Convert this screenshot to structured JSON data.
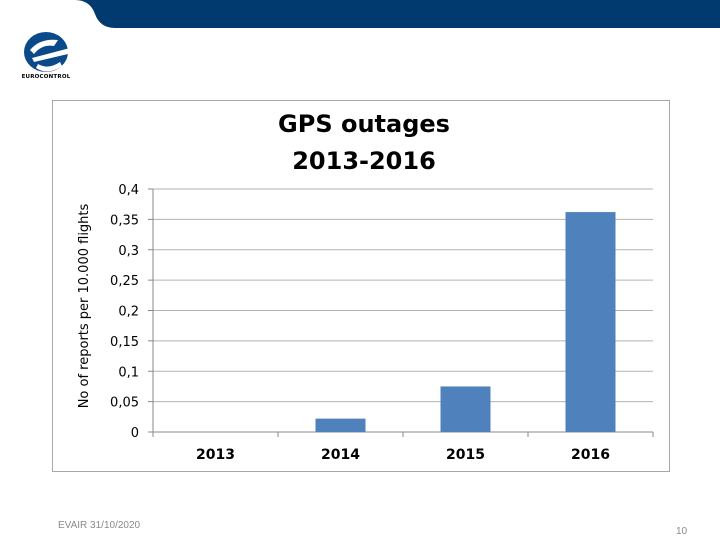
{
  "colors": {
    "header_band": "#003a6f",
    "bar": "#4f81bd",
    "grid": "#b3b3b3",
    "axis": "#888888",
    "text": "#000000"
  },
  "logo": {
    "icon": "eurocontrol-logo",
    "text": "EUROCONTROL"
  },
  "footer": {
    "event": "EVAIR 31/10/2020",
    "page": "10"
  },
  "chart_data": {
    "type": "bar",
    "title": [
      "GPS outages",
      "2013-2016"
    ],
    "ylabel": "No of reports per 10.000 flights",
    "xlabel": "",
    "categories": [
      "2013",
      "2014",
      "2015",
      "2016"
    ],
    "values": [
      0,
      0.022,
      0.075,
      0.362
    ],
    "ylim": [
      0,
      0.4
    ],
    "yticks": [
      {
        "value": 0,
        "label": "0"
      },
      {
        "value": 0.05,
        "label": "0,05"
      },
      {
        "value": 0.1,
        "label": "0,1"
      },
      {
        "value": 0.15,
        "label": "0,15"
      },
      {
        "value": 0.2,
        "label": "0,2"
      },
      {
        "value": 0.25,
        "label": "0,25"
      },
      {
        "value": 0.3,
        "label": "0,3"
      },
      {
        "value": 0.35,
        "label": "0,35"
      },
      {
        "value": 0.4,
        "label": "0,4"
      }
    ],
    "grid": true,
    "legend": "none"
  }
}
